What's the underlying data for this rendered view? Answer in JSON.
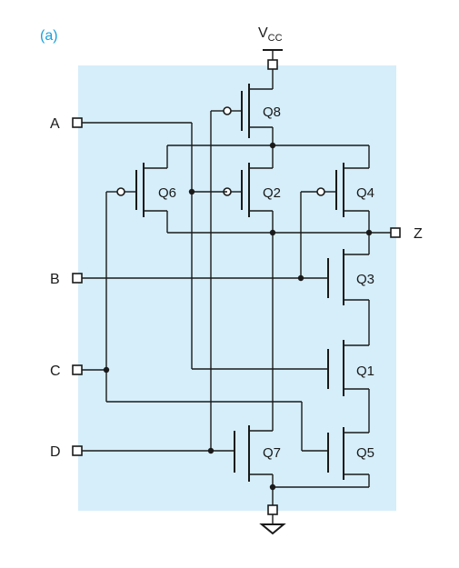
{
  "figure": {
    "tag": "(a)",
    "tag_color": "#1aa0dc",
    "panel_color": "#d5eefa"
  },
  "supply": {
    "main": "V",
    "sub": "CC"
  },
  "inputs": {
    "a": "A",
    "b": "B",
    "c": "C",
    "d": "D"
  },
  "output": {
    "z": "Z"
  },
  "transistors": {
    "q1": "Q1",
    "q2": "Q2",
    "q3": "Q3",
    "q4": "Q4",
    "q5": "Q5",
    "q6": "Q6",
    "q7": "Q7",
    "q8": "Q8"
  }
}
